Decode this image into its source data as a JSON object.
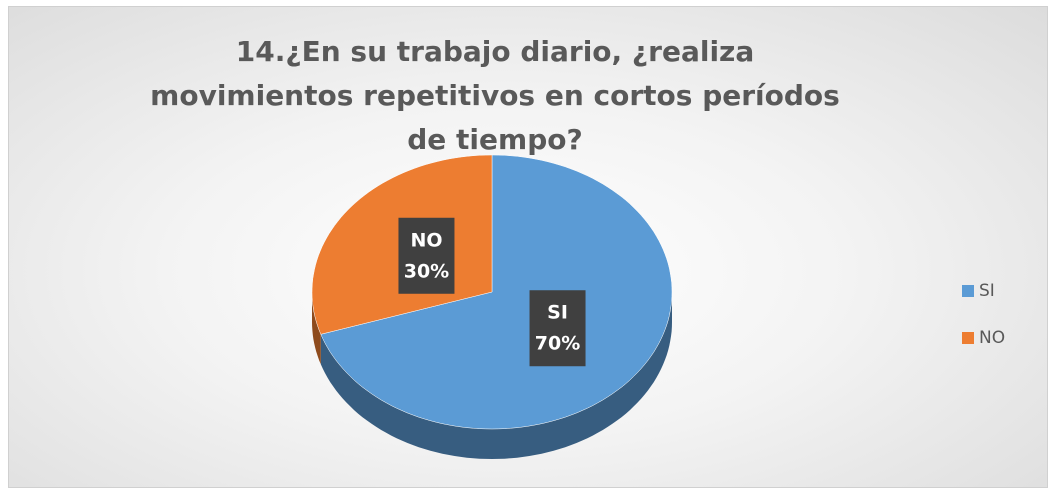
{
  "chart_data": {
    "type": "pie",
    "title": "14.¿En su trabajo diario, ¿realiza movimientos repetitivos en cortos períodos de tiempo?",
    "categories": [
      "SI",
      "NO"
    ],
    "values": [
      70,
      30
    ],
    "value_labels": [
      "70%",
      "30%"
    ],
    "colors": [
      "#5b9bd5",
      "#ed7d31"
    ],
    "legend": "right"
  }
}
